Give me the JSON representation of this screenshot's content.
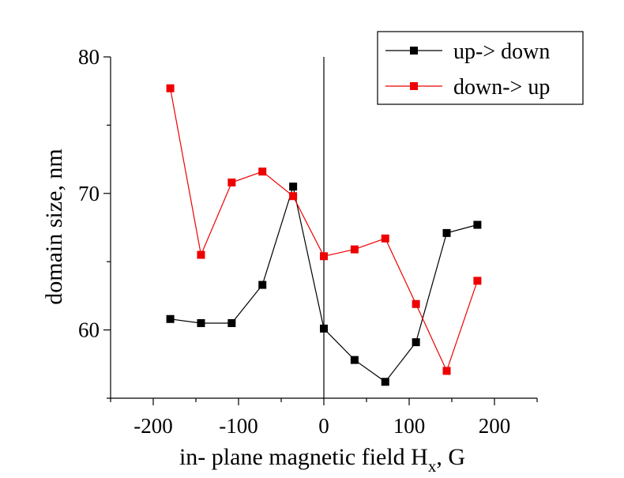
{
  "chart_data": {
    "type": "line",
    "title": "",
    "xlabel": {
      "main": "in- plane magnetic field H",
      "subscript": "x",
      "suffix": ", G"
    },
    "ylabel": "domain size, nm",
    "xlim": [
      -250,
      250
    ],
    "ylim": [
      55,
      80
    ],
    "x_ticks": [
      -200,
      -100,
      0,
      100,
      200
    ],
    "x_tick_labels": [
      "-200",
      "-100",
      "0",
      "100",
      "200"
    ],
    "y_ticks": [
      60,
      70,
      80
    ],
    "y_tick_labels": [
      "60",
      "70",
      "80"
    ],
    "grid": false,
    "legend_position": "top-right",
    "zero_line": true,
    "series": [
      {
        "name": "up-> down",
        "color": "#000000",
        "marker": "square",
        "x": [
          -180,
          -144,
          -108,
          -72,
          -36,
          0,
          36,
          72,
          108,
          144,
          180
        ],
        "y": [
          60.8,
          60.5,
          60.5,
          63.3,
          70.5,
          60.1,
          57.8,
          56.2,
          59.1,
          67.1,
          67.7
        ]
      },
      {
        "name": "down-> up",
        "color": "#ee0000",
        "marker": "square",
        "x": [
          -180,
          -144,
          -108,
          -72,
          -36,
          0,
          36,
          72,
          108,
          144,
          180
        ],
        "y": [
          77.7,
          65.5,
          70.8,
          71.6,
          69.8,
          65.4,
          65.9,
          66.7,
          61.9,
          57.0,
          63.6
        ]
      }
    ]
  }
}
